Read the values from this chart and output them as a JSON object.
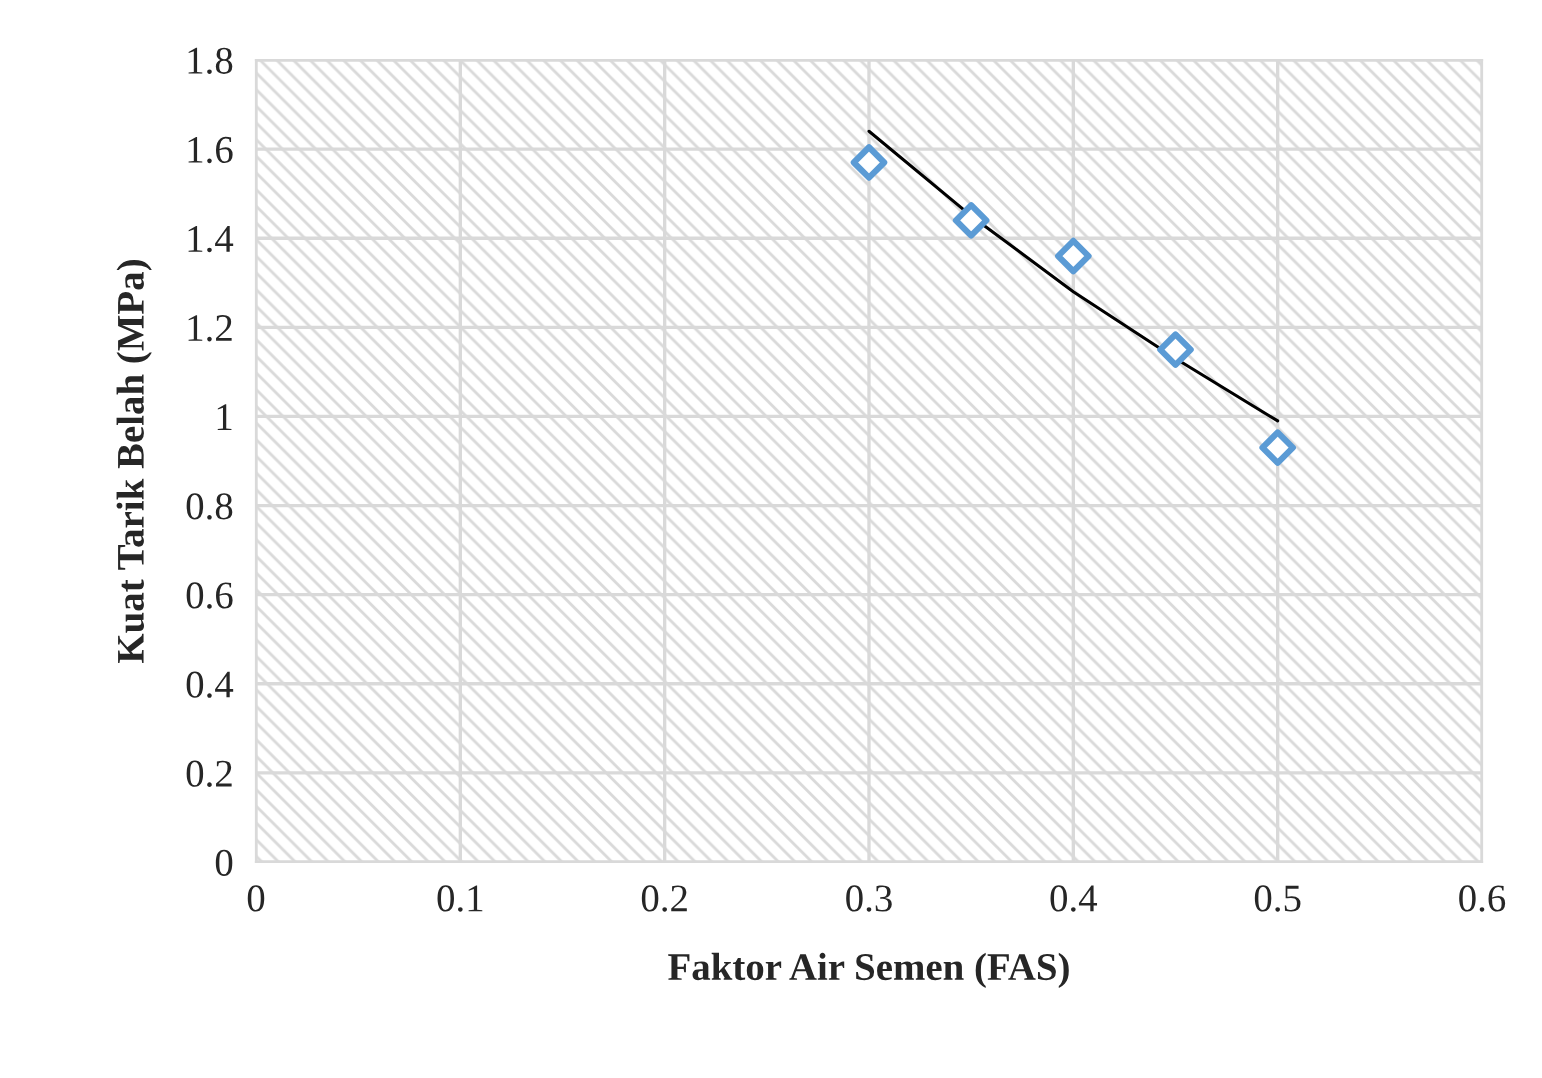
{
  "chart_data": {
    "type": "scatter",
    "xlabel": "Faktor Air Semen (FAS)",
    "ylabel": "Kuat Tarik Belah (MPa)",
    "x": [
      0.3,
      0.35,
      0.4,
      0.45,
      0.5
    ],
    "series": [
      {
        "color": "#5b9bd5",
        "marker": "diamond",
        "values": [
          1.57,
          1.44,
          1.36,
          1.15,
          0.93
        ]
      },
      {
        "type": "line",
        "color": "#000000",
        "marker": "none",
        "line_style": "solid",
        "x": [
          0.3,
          0.35,
          0.4,
          0.45,
          0.5
        ],
        "values": [
          1.64,
          1.45,
          1.28,
          1.13,
          0.99
        ]
      }
    ],
    "xlim": [
      0,
      0.6
    ],
    "xticks": [
      0,
      0.1,
      0.2,
      0.3,
      0.4,
      0.5,
      0.6
    ],
    "ylim": [
      0,
      1.8
    ],
    "yticks": [
      0,
      0.2,
      0.4,
      0.6,
      0.8,
      1,
      1.2,
      1.4,
      1.6,
      1.8
    ],
    "grid": true,
    "legend": false
  }
}
